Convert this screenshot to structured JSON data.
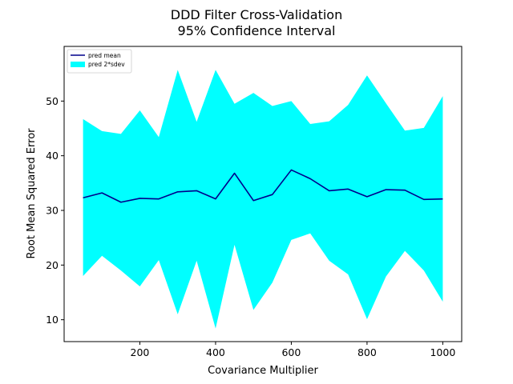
{
  "chart_data": {
    "type": "line",
    "title_lines": [
      "DDD Filter Cross-Validation",
      "95% Confidence Interval"
    ],
    "xlabel": "Covariance Multiplier",
    "ylabel": "Root Mean Squared Error",
    "xlim": [
      0,
      1050
    ],
    "ylim": [
      6,
      60
    ],
    "xticks": [
      200,
      400,
      600,
      800,
      1000
    ],
    "yticks": [
      10,
      20,
      30,
      40,
      50
    ],
    "grid": false,
    "legend_position": "upper-left",
    "x": [
      50,
      100,
      150,
      200,
      250,
      300,
      350,
      400,
      450,
      500,
      550,
      600,
      650,
      700,
      750,
      800,
      850,
      900,
      950,
      1000
    ],
    "series": [
      {
        "name": "pred mean",
        "kind": "line",
        "color": "#00008b",
        "values": [
          32.3,
          33.2,
          31.5,
          32.2,
          32.1,
          33.4,
          33.6,
          32.1,
          36.8,
          31.8,
          32.9,
          37.4,
          35.8,
          33.6,
          33.9,
          32.5,
          33.8,
          33.7,
          32.0,
          32.1
        ]
      },
      {
        "name": "pred 2*sdev",
        "kind": "band",
        "color": "#00ffff",
        "upper": [
          46.7,
          44.5,
          44.0,
          48.3,
          43.4,
          55.7,
          46.2,
          55.7,
          49.5,
          51.5,
          49.1,
          50.0,
          45.8,
          46.3,
          49.3,
          54.7,
          49.6,
          44.6,
          45.1,
          50.9
        ],
        "lower": [
          18.0,
          21.7,
          19.0,
          16.1,
          20.9,
          11.0,
          20.8,
          8.4,
          23.7,
          11.8,
          16.8,
          24.6,
          25.8,
          20.8,
          18.3,
          10.1,
          17.9,
          22.6,
          19.0,
          13.3
        ]
      }
    ]
  }
}
